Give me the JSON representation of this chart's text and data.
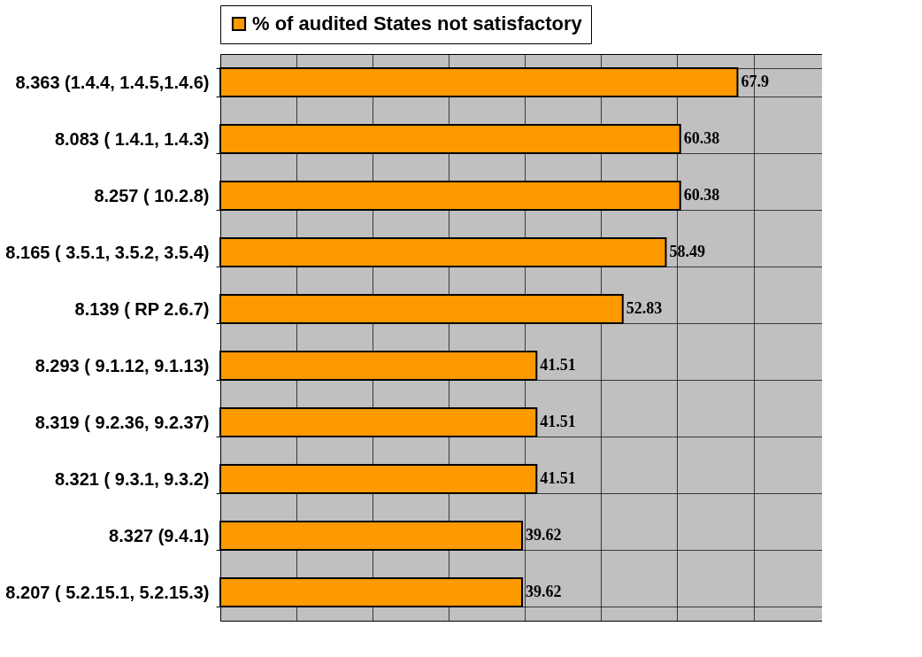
{
  "chart_data": {
    "type": "bar",
    "orientation": "horizontal",
    "categories": [
      "8.363 (1.4.4, 1.4.5,1.4.6)",
      "8.083 ( 1.4.1, 1.4.3)",
      "8.257 ( 10.2.8)",
      "8.165 ( 3.5.1, 3.5.2, 3.5.4)",
      "8.139 ( RP 2.6.7)",
      "8.293 ( 9.1.12, 9.1.13)",
      "8.319 ( 9.2.36, 9.2.37)",
      "8.321 ( 9.3.1, 9.3.2)",
      "8.327 (9.4.1)",
      "8.207 ( 5.2.15.1, 5.2.15.3)"
    ],
    "series": [
      {
        "name": "% of audited States not satisfactory",
        "color": "#ff9900",
        "values": [
          67.9,
          60.38,
          60.38,
          58.49,
          52.83,
          41.51,
          41.51,
          41.51,
          39.62,
          39.62
        ]
      }
    ],
    "xlim": [
      0,
      79
    ],
    "xticks": [
      {
        "value": 0,
        "label": null
      },
      {
        "value": 10,
        "label": null
      },
      {
        "value": 20,
        "label": null
      },
      {
        "value": 30,
        "label": null
      },
      {
        "value": 40,
        "label": null
      },
      {
        "value": 50,
        "label": null
      },
      {
        "value": 60,
        "label": null
      },
      {
        "value": 70,
        "label": null
      }
    ],
    "tick_labels": "y",
    "grid": true,
    "legend": "top",
    "data_labels": true
  }
}
